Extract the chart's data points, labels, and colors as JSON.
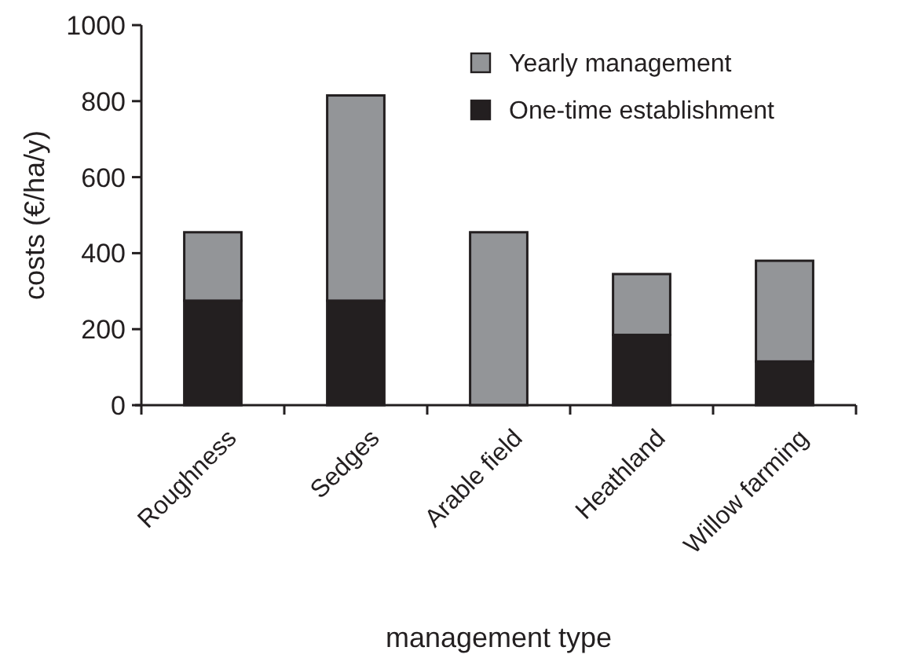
{
  "chart_data": {
    "type": "bar",
    "stacked": true,
    "xlabel": "management type",
    "ylabel": "costs (€/ha/y)",
    "categories": [
      "Roughness",
      "Sedges",
      "Arable field",
      "Heathland",
      "Willow farming"
    ],
    "series": [
      {
        "name": "One-time establishment",
        "color": "#231f20",
        "values": [
          275,
          275,
          0,
          185,
          115
        ]
      },
      {
        "name": "Yearly management",
        "color": "#939598",
        "values": [
          180,
          540,
          455,
          160,
          265
        ]
      }
    ],
    "ylim": [
      0,
      1000
    ],
    "yticks": [
      0,
      200,
      400,
      600,
      800,
      1000
    ],
    "legend": "top right",
    "grid": false
  }
}
